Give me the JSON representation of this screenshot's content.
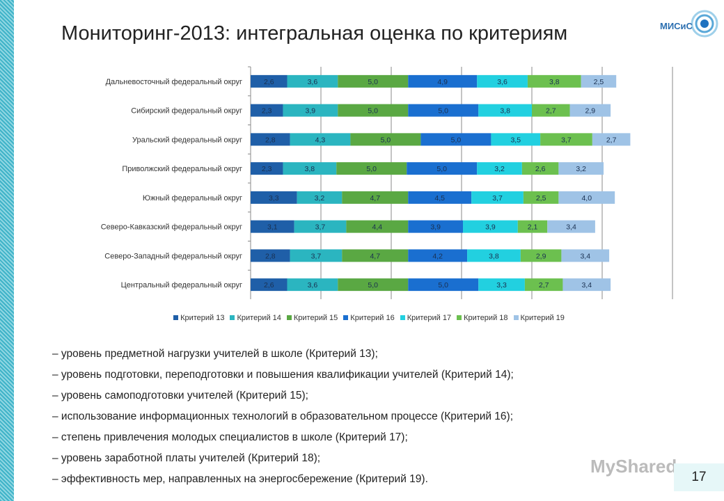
{
  "title": "Мониторинг-2013: интегральная оценка по критериям",
  "logo_text": "МИСиС",
  "watermark": "MyShared",
  "page_number": "17",
  "chart_data": {
    "type": "bar",
    "orientation": "horizontal",
    "stacked": true,
    "xlim": [
      0,
      30
    ],
    "grid": true,
    "legend_position": "bottom",
    "categories": [
      "Дальневосточный федеральный округ",
      "Сибирский федеральный округ",
      "Уральский федеральный округ",
      "Приволжский федеральный округ",
      "Южный федеральный округ",
      "Северо-Кавказский федеральный округ",
      "Северо-Западный федеральный округ",
      "Центральный федеральный округ"
    ],
    "series": [
      {
        "name": "Критерий 13",
        "color": "#1f5fa8",
        "values": [
          2.6,
          2.3,
          2.8,
          2.3,
          3.3,
          3.1,
          2.8,
          2.6
        ]
      },
      {
        "name": "Критерий 14",
        "color": "#2bb5c0",
        "values": [
          3.6,
          3.9,
          4.3,
          3.8,
          3.2,
          3.7,
          3.7,
          3.6
        ]
      },
      {
        "name": "Критерий 15",
        "color": "#5aa843",
        "values": [
          5.0,
          5.0,
          5.0,
          5.0,
          4.7,
          4.4,
          4.7,
          5.0
        ]
      },
      {
        "name": "Критерий 16",
        "color": "#1a6fd0",
        "values": [
          4.9,
          5.0,
          5.0,
          5.0,
          4.5,
          3.9,
          4.2,
          5.0
        ]
      },
      {
        "name": "Критерий 17",
        "color": "#22d0e0",
        "values": [
          3.6,
          3.8,
          3.5,
          3.2,
          3.7,
          3.9,
          3.8,
          3.3
        ]
      },
      {
        "name": "Критерий 18",
        "color": "#6cc04f",
        "values": [
          3.8,
          2.7,
          3.7,
          2.6,
          2.5,
          2.1,
          2.9,
          2.7
        ]
      },
      {
        "name": "Критерий 19",
        "color": "#9fc3e6",
        "values": [
          2.5,
          2.9,
          2.7,
          3.2,
          4.0,
          3.4,
          3.4,
          3.4
        ]
      }
    ]
  },
  "notes": [
    "– уровень предметной нагрузки учителей в школе (Критерий 13);",
    "– уровень подготовки, переподготовки и повышения квалификации учителей (Критерий 14);",
    "– уровень самоподготовки учителей (Критерий 15);",
    "– использование информационных технологий в образовательном процессе (Критерий 16);",
    "– степень привлечения молодых специалистов в школе (Критерий 17);",
    "– уровень заработной платы учителей (Критерий 18);",
    "– эффективность мер, направленных на энергосбережение (Критерий 19)."
  ]
}
